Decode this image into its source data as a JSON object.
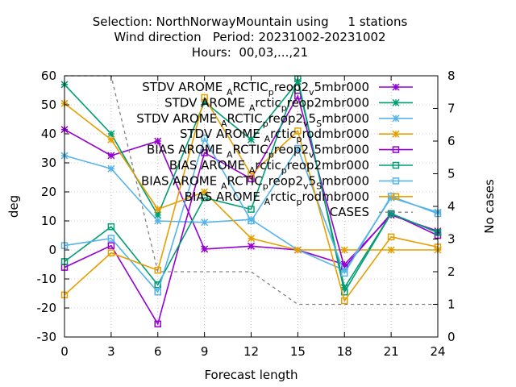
{
  "chart_data": {
    "type": "line",
    "title_lines": [
      "Selection: NorthNorwayMountain using     1 stations",
      "Wind direction   Period: 20231002-20231002",
      "Hours:  00,03,...,21"
    ],
    "xlabel": "Forecast length",
    "ylabel": "deg",
    "y2label": "No cases",
    "x": [
      0,
      3,
      6,
      9,
      12,
      15,
      18,
      21,
      24
    ],
    "x_ticks": [
      "0",
      "3",
      "6",
      "9",
      "12",
      "15",
      "18",
      "21",
      "24"
    ],
    "xlim": [
      0,
      24
    ],
    "ylim": [
      -30,
      60
    ],
    "y_ticks": [
      "-30",
      "-20",
      "-10",
      "0",
      "10",
      "20",
      "30",
      "40",
      "50",
      "60"
    ],
    "y2lim": [
      0,
      8
    ],
    "y2_ticks": [
      "0",
      "1",
      "2",
      "3",
      "4",
      "5",
      "6",
      "7",
      "8"
    ],
    "grid": true,
    "legend_position": "top-right",
    "series": [
      {
        "name": "STDV AROME_ARCTIC_preop2_v5mbr000",
        "legend_main": "STDV AROME",
        "legend_parts": [
          [
            "A",
            "sub"
          ],
          [
            "RCTIC",
            "base"
          ],
          [
            "p",
            "sub"
          ],
          [
            "reop2",
            "base"
          ],
          [
            "v",
            "sub"
          ],
          [
            "5mbr000",
            "base"
          ]
        ],
        "color": "#9400d3",
        "marker": "x",
        "axis": "y",
        "values": [
          41.5,
          32.5,
          37.5,
          0.3,
          1.3,
          0,
          -5,
          12,
          6.5
        ]
      },
      {
        "name": "STDV AROME_Arctic_preop2mbr000",
        "legend_main": "STDV AROME",
        "legend_parts": [
          [
            "A",
            "sub"
          ],
          [
            "rctic",
            "base"
          ],
          [
            "p",
            "sub"
          ],
          [
            "reop2mbr000",
            "base"
          ]
        ],
        "color": "#009e73",
        "marker": "x",
        "axis": "y",
        "values": [
          57,
          40,
          12,
          51,
          38,
          58,
          -13,
          12.5,
          6
        ]
      },
      {
        "name": "STDV AROME_ARCTIC_preop2_v5_Smbr000",
        "legend_main": "STDV AROME",
        "legend_parts": [
          [
            "A",
            "sub"
          ],
          [
            "RCTIC",
            "base"
          ],
          [
            "p",
            "sub"
          ],
          [
            "reop2",
            "base"
          ],
          [
            "v",
            "sub"
          ],
          [
            "5",
            "base"
          ],
          [
            "S",
            "sub"
          ],
          [
            "mbr000",
            "base"
          ]
        ],
        "color": "#56b4e9",
        "marker": "x",
        "axis": "y",
        "values": [
          32.5,
          28,
          10,
          9.5,
          10.5,
          0,
          -7,
          18,
          13
        ]
      },
      {
        "name": "STDV AROME_Arctic_prodmbr000",
        "legend_main": "STDV AROME",
        "legend_parts": [
          [
            "A",
            "sub"
          ],
          [
            "rctic",
            "base"
          ],
          [
            "p",
            "sub"
          ],
          [
            "rodmbr000",
            "base"
          ]
        ],
        "color": "#e69f00",
        "marker": "x",
        "axis": "y",
        "values": [
          50.5,
          38,
          14,
          20,
          4,
          0,
          0,
          0,
          0
        ]
      },
      {
        "name": "BIAS AROME_ARCTIC_preop2_v5mbr000",
        "legend_main": "BIAS AROME",
        "legend_parts": [
          [
            "A",
            "sub"
          ],
          [
            "RCTIC",
            "base"
          ],
          [
            "p",
            "sub"
          ],
          [
            "reop2",
            "base"
          ],
          [
            "v",
            "sub"
          ],
          [
            "5mbr000",
            "base"
          ]
        ],
        "color": "#9400d3",
        "marker": "square",
        "axis": "y",
        "values": [
          -6,
          1.5,
          -25.5,
          33.5,
          24.5,
          53,
          -6,
          12.5,
          5
        ]
      },
      {
        "name": "BIAS AROME_Arctic_preop2mbr000",
        "legend_main": "BIAS AROME",
        "legend_parts": [
          [
            "A",
            "sub"
          ],
          [
            "rctic",
            "base"
          ],
          [
            "p",
            "sub"
          ],
          [
            "reop2mbr000",
            "base"
          ]
        ],
        "color": "#009e73",
        "marker": "square",
        "axis": "y",
        "values": [
          -4,
          8,
          -12,
          18,
          14,
          59,
          -14.5,
          12.5,
          6
        ]
      },
      {
        "name": "BIAS AROME_ARCTIC_preop2_v5_Smbr000",
        "legend_main": "BIAS AROME",
        "legend_parts": [
          [
            "A",
            "sub"
          ],
          [
            "RCTIC",
            "base"
          ],
          [
            "p",
            "sub"
          ],
          [
            "reop2",
            "base"
          ],
          [
            "v",
            "sub"
          ],
          [
            "5",
            "base"
          ],
          [
            "S",
            "sub"
          ],
          [
            "mbr000",
            "base"
          ]
        ],
        "color": "#56b4e9",
        "marker": "square",
        "axis": "y",
        "values": [
          1.5,
          4,
          -14.5,
          38.5,
          10,
          35,
          -8,
          18.5,
          12.5
        ]
      },
      {
        "name": "BIAS AROME_Arctic_prodmbr000",
        "legend_main": "BIAS AROME",
        "legend_parts": [
          [
            "A",
            "sub"
          ],
          [
            "rctic",
            "base"
          ],
          [
            "p",
            "sub"
          ],
          [
            "rodmbr000",
            "base"
          ]
        ],
        "color": "#e69f00",
        "marker": "square",
        "axis": "y",
        "values": [
          -15.5,
          -1,
          -7,
          52.5,
          26,
          41,
          -17.5,
          4.5,
          1
        ]
      },
      {
        "name": "CASES",
        "legend_main": "CASES",
        "legend_parts": [],
        "color": "#808080",
        "marker": "none",
        "dashed": true,
        "axis": "y2",
        "values": [
          8,
          8,
          2,
          2,
          2,
          1,
          1,
          1,
          1
        ]
      }
    ]
  }
}
